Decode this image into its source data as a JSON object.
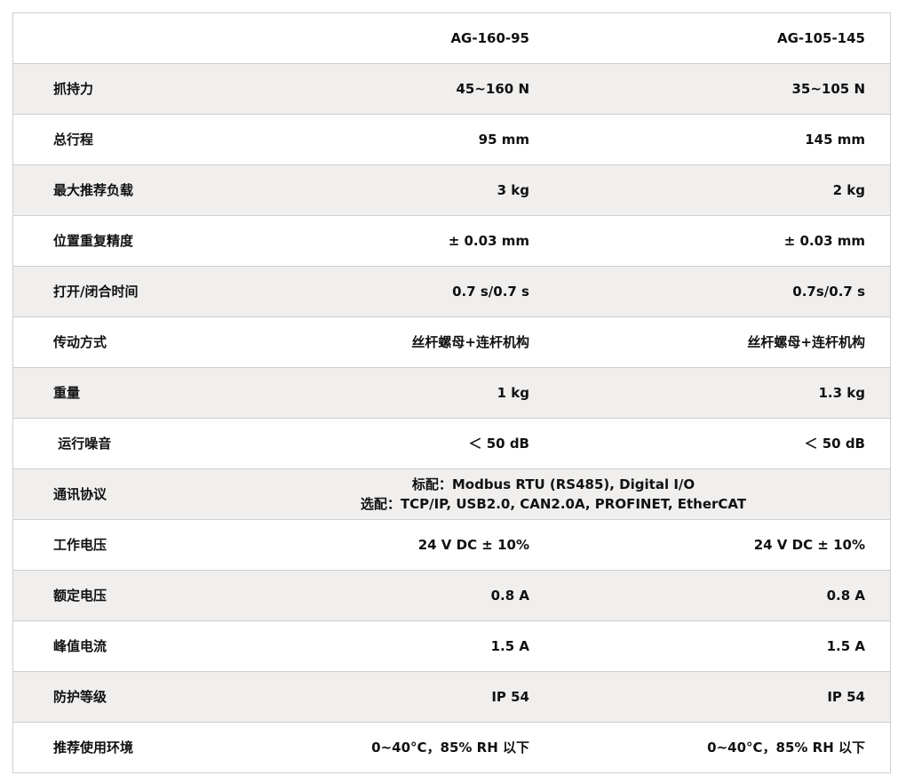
{
  "header": {
    "model_1": "AG-160-95",
    "model_2": "AG-105-145"
  },
  "rows": [
    {
      "label": "抓持力",
      "v1": "45~160 N",
      "v2": "35~105 N"
    },
    {
      "label": "总行程",
      "v1": "95 mm",
      "v2": "145 mm"
    },
    {
      "label": "最大推荐负载",
      "v1": "3 kg",
      "v2": "2 kg"
    },
    {
      "label": "位置重复精度",
      "v1": "± 0.03 mm",
      "v2": "± 0.03 mm"
    },
    {
      "label": "打开/闭合时间",
      "v1": "0.7 s/0.7 s",
      "v2": "0.7s/0.7 s"
    },
    {
      "label": "传动方式",
      "v1": "丝杆螺母+连杆机构",
      "v2": "丝杆螺母+连杆机构"
    },
    {
      "label": "重量",
      "v1": "1 kg",
      "v2": "1.3 kg"
    },
    {
      "label": " 运行噪音",
      "v1": "＜ 50 dB",
      "v2": "＜ 50 dB"
    },
    {
      "label": "通讯协议",
      "merged": [
        "标配：Modbus RTU (RS485), Digital I/O",
        "选配：TCP/IP, USB2.0, CAN2.0A, PROFINET, EtherCAT"
      ]
    },
    {
      "label": "工作电压",
      "v1": "24 V DC ± 10%",
      "v2": "24 V DC ± 10%"
    },
    {
      "label": "额定电压",
      "v1": "0.8 A",
      "v2": "0.8 A"
    },
    {
      "label": "峰值电流",
      "v1": "1.5 A",
      "v2": "1.5 A"
    },
    {
      "label": "防护等级",
      "v1": "IP 54",
      "v2": "IP 54"
    },
    {
      "label": "推荐使用环境",
      "v1": "0~40°C，85% RH 以下",
      "v2": "0~40°C，85% RH 以下"
    }
  ],
  "colors": {
    "row_alt": "#f0efee",
    "border": "#cfcfcf"
  }
}
